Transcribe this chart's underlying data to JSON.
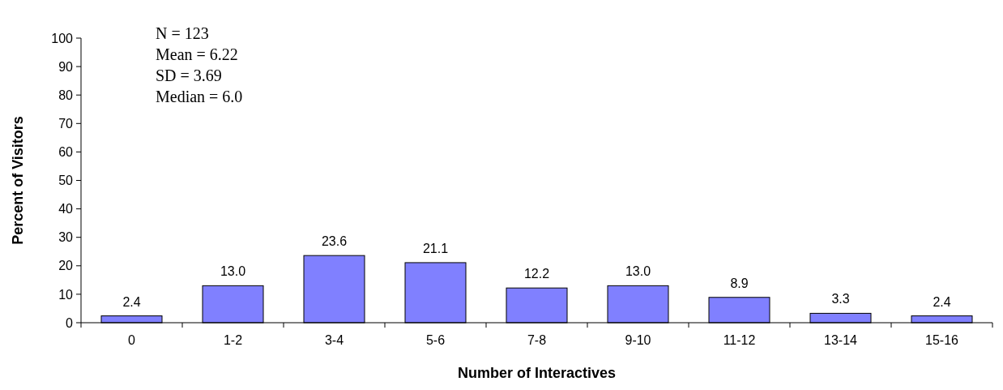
{
  "chart_data": {
    "type": "bar",
    "xlabel": "Number of Interactives",
    "ylabel": "Percent of Visitors",
    "categories": [
      "0",
      "1-2",
      "3-4",
      "5-6",
      "7-8",
      "9-10",
      "11-12",
      "13-14",
      "15-16"
    ],
    "values": [
      2.4,
      13.0,
      23.6,
      21.1,
      12.2,
      13.0,
      8.9,
      3.3,
      2.4
    ],
    "value_labels": [
      "2.4",
      "13.0",
      "23.6",
      "21.1",
      "12.2",
      "13.0",
      "8.9",
      "3.3",
      "2.4"
    ],
    "color": "#8080ff",
    "ylim": [
      0,
      100
    ],
    "yticks": [
      0,
      10,
      20,
      30,
      40,
      50,
      60,
      70,
      80,
      90,
      100
    ],
    "grid": false,
    "annotations": [
      "N = 123",
      "Mean = 6.22",
      "SD = 3.69",
      "Median = 6.0"
    ]
  }
}
